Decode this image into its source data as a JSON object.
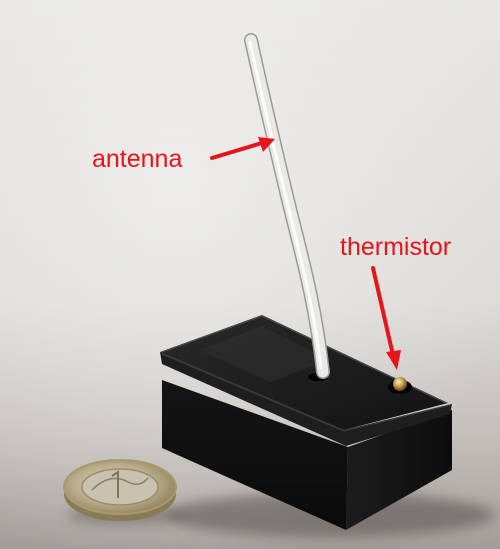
{
  "labels": {
    "antenna": "antenna",
    "thermistor": "thermistor"
  },
  "colors": {
    "annotation": "#e8141c",
    "background_light": "#e4e3e1",
    "background_dark": "#a9a5a1",
    "enclosure": "#111111",
    "antenna_wire": "#e6e6e3",
    "coin": "#b9a779"
  },
  "objects": {
    "enclosure": "black-plastic-enclosure",
    "antenna": "white-insulated-wire",
    "sensor": "thermistor-bead",
    "coin": "euro-coin"
  }
}
